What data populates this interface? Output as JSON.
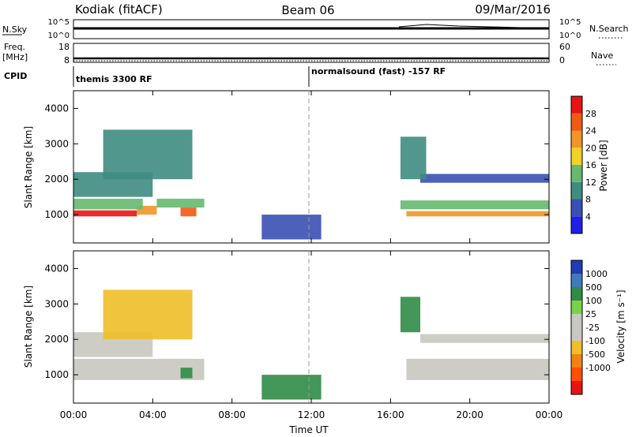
{
  "header": {
    "station": "Kodiak (fitACF)",
    "beam": "Beam 06",
    "date": "09/Mar/2016"
  },
  "nsky_panel": {
    "left_label": "N.Sky",
    "right_label": "N.Search",
    "left_ticks": [
      "10^5",
      "10^0"
    ],
    "right_ticks": [
      "10^5",
      "10^0"
    ]
  },
  "freq_panel": {
    "left_label_top": "Freq.",
    "left_label_unit": "[MHz]",
    "right_label": "Nave",
    "left_ticks": [
      "18",
      "8"
    ],
    "right_ticks": [
      "60",
      "0"
    ]
  },
  "cpid_panel": {
    "label": "CPID",
    "mode_left": "themis 3300 RF",
    "mode_right": "normalsound (fast) -157 RF"
  },
  "power_panel": {
    "ylabel": "Slant Range [km]",
    "yticks": [
      "1000",
      "2000",
      "3000",
      "4000"
    ],
    "colorbar_label": "Power [dB]",
    "colorbar_ticks": [
      "4",
      "8",
      "12",
      "16",
      "20",
      "24",
      "28"
    ]
  },
  "velocity_panel": {
    "ylabel": "Slant Range [km]",
    "yticks": [
      "1000",
      "2000",
      "3000",
      "4000"
    ],
    "colorbar_label": "Velocity [m s⁻¹]",
    "colorbar_ticks": [
      "1000",
      "500",
      "100",
      "25",
      "-25",
      "-100",
      "-500",
      "-1000"
    ]
  },
  "xaxis": {
    "label": "Time UT",
    "ticks": [
      "00:00",
      "04:00",
      "08:00",
      "12:00",
      "16:00",
      "20:00",
      "00:00"
    ]
  },
  "colors": {
    "power_scale": [
      "#1f1fe6",
      "#3a50b4",
      "#3f8c82",
      "#66b96e",
      "#f0d228",
      "#f09628",
      "#f05a14",
      "#e61414"
    ],
    "velocity_scale": [
      "#1e3cb4",
      "#3f7ab9",
      "#2f8c46",
      "#7ad246",
      "#c8c8c0",
      "#c8c8c0",
      "#f0be28",
      "#f08214",
      "#ff5000",
      "#e61414"
    ]
  },
  "chart_data": {
    "type": "heatmap",
    "x_range_hours": [
      0,
      24
    ],
    "y_range_km": [
      200,
      4500
    ],
    "power_range_db": [
      0,
      32
    ],
    "velocity_range_ms": [
      -1200,
      1200
    ],
    "power_regions": [
      {
        "t": [
          0.0,
          3.2
        ],
        "r": [
          950,
          1120
        ],
        "v": 28
      },
      {
        "t": [
          3.2,
          4.2
        ],
        "r": [
          1000,
          1250
        ],
        "v": 20
      },
      {
        "t": [
          4.2,
          6.6
        ],
        "r": [
          1200,
          1450
        ],
        "v": 15
      },
      {
        "t": [
          0.0,
          3.5
        ],
        "r": [
          1150,
          1450
        ],
        "v": 12
      },
      {
        "t": [
          0.0,
          4.0
        ],
        "r": [
          1500,
          2200
        ],
        "v": 8
      },
      {
        "t": [
          1.5,
          6.0
        ],
        "r": [
          2000,
          3400
        ],
        "v": 10
      },
      {
        "t": [
          5.4,
          6.2
        ],
        "r": [
          950,
          1200
        ],
        "v": 26
      },
      {
        "t": [
          16.8,
          24.0
        ],
        "r": [
          950,
          1100
        ],
        "v": 22
      },
      {
        "t": [
          16.5,
          24.0
        ],
        "r": [
          1150,
          1400
        ],
        "v": 14
      },
      {
        "t": [
          17.5,
          24.0
        ],
        "r": [
          1900,
          2150
        ],
        "v": 6
      },
      {
        "t": [
          16.5,
          17.8
        ],
        "r": [
          2000,
          3200
        ],
        "v": 8
      },
      {
        "t": [
          9.5,
          12.5
        ],
        "r": [
          300,
          1000
        ],
        "v": 6
      }
    ],
    "velocity_regions": [
      {
        "t": [
          0.0,
          6.6
        ],
        "r": [
          850,
          1450
        ],
        "v": 0
      },
      {
        "t": [
          0.0,
          4.0
        ],
        "r": [
          1500,
          2200
        ],
        "v": 0
      },
      {
        "t": [
          1.5,
          6.0
        ],
        "r": [
          2000,
          3400
        ],
        "v": -50
      },
      {
        "t": [
          5.4,
          6.0
        ],
        "r": [
          900,
          1200
        ],
        "v": 200
      },
      {
        "t": [
          16.8,
          24.0
        ],
        "r": [
          850,
          1450
        ],
        "v": 0
      },
      {
        "t": [
          17.5,
          24.0
        ],
        "r": [
          1900,
          2150
        ],
        "v": 0
      },
      {
        "t": [
          16.5,
          17.5
        ],
        "r": [
          2200,
          3200
        ],
        "v": 150
      },
      {
        "t": [
          9.5,
          12.5
        ],
        "r": [
          300,
          1000
        ],
        "v": 150
      }
    ]
  }
}
